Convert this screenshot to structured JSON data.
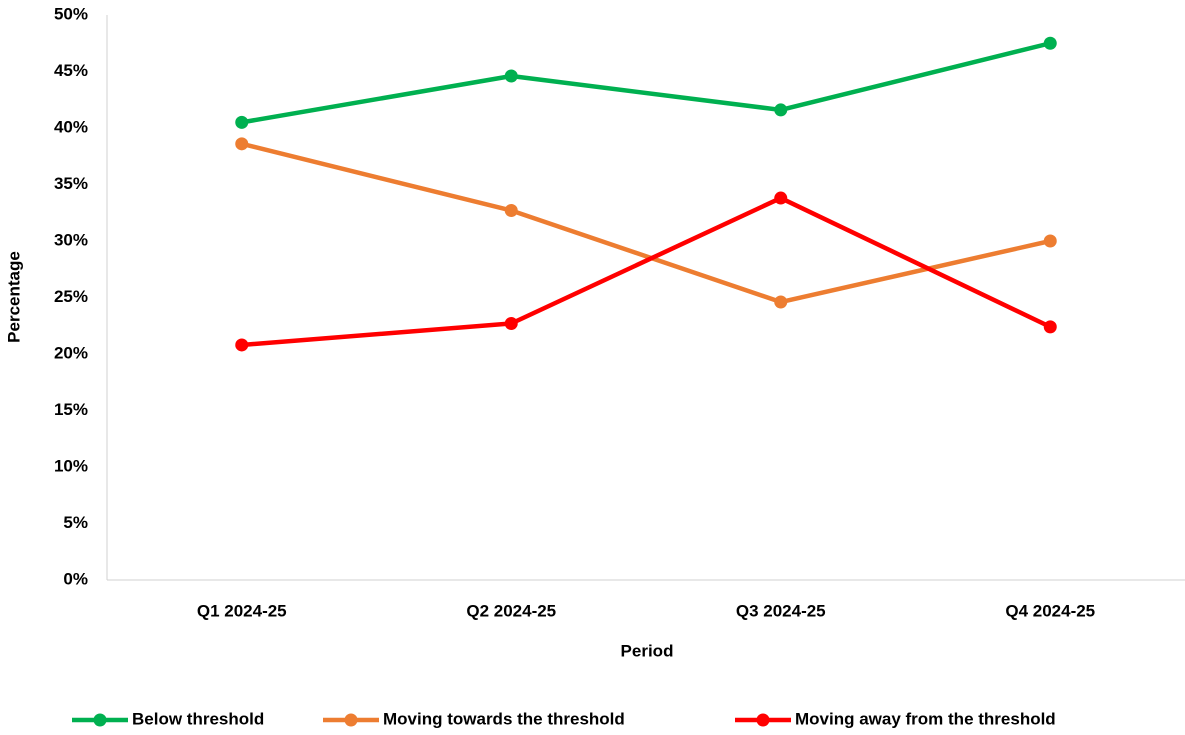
{
  "chart_data": {
    "type": "line",
    "categories": [
      "Q1 2024-25",
      "Q2 2024-25",
      "Q3 2024-25",
      "Q4 2024-25"
    ],
    "series": [
      {
        "name": "Below threshold",
        "color": "#00b050",
        "values": [
          40.5,
          44.6,
          41.6,
          47.5
        ]
      },
      {
        "name": "Moving towards the threshold",
        "color": "#ed7d31",
        "values": [
          38.6,
          32.7,
          24.6,
          30.0
        ]
      },
      {
        "name": "Moving away from the threshold",
        "color": "#ff0000",
        "values": [
          20.8,
          22.7,
          33.8,
          22.4
        ]
      }
    ],
    "x_label": "Period",
    "y_label": "Percentage",
    "ylim": [
      0,
      50
    ],
    "yticks": [
      {
        "value": 0,
        "label": "0%"
      },
      {
        "value": 5,
        "label": "5%"
      },
      {
        "value": 10,
        "label": "10%"
      },
      {
        "value": 15,
        "label": "15%"
      },
      {
        "value": 20,
        "label": "20%"
      },
      {
        "value": 25,
        "label": "25%"
      },
      {
        "value": 30,
        "label": "30%"
      },
      {
        "value": 35,
        "label": "35%"
      },
      {
        "value": 40,
        "label": "40%"
      },
      {
        "value": 45,
        "label": "45%"
      },
      {
        "value": 50,
        "label": "50%"
      }
    ],
    "grid": false,
    "legend": "bottom"
  }
}
